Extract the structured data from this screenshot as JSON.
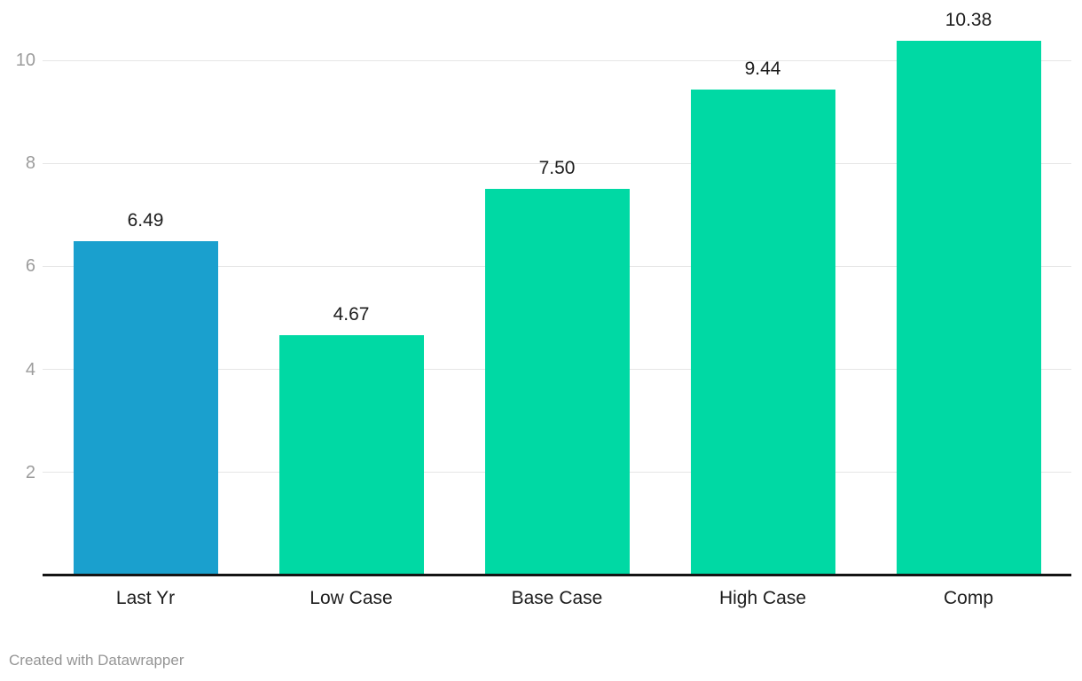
{
  "chart_data": {
    "type": "bar",
    "categories": [
      "Last Yr",
      "Low Case",
      "Base Case",
      "High Case",
      "Comp"
    ],
    "values": [
      6.49,
      4.67,
      7.5,
      9.44,
      10.38
    ],
    "value_labels": [
      "6.49",
      "4.67",
      "7.50",
      "9.44",
      "10.38"
    ],
    "bar_colors": [
      "#1aa0ce",
      "#00d9a4",
      "#00d9a4",
      "#00d9a4",
      "#00d9a4"
    ],
    "y_ticks": [
      "2",
      "4",
      "6",
      "8",
      "10"
    ],
    "y_tick_values": [
      2,
      4,
      6,
      8,
      10
    ],
    "ylim": [
      0,
      10.38
    ],
    "grid": true,
    "legend": "none",
    "xlabel": "",
    "ylabel": ""
  },
  "footer": {
    "credit": "Created with Datawrapper"
  },
  "colors": {
    "highlight_bar": "#1aa0ce",
    "default_bar": "#00d9a4",
    "gridline": "#e6e6e6",
    "axis_line": "#141414",
    "tick_label": "#9c9c9c",
    "category_label": "#1d1d1d",
    "value_label": "#1d1d1d",
    "credit": "#959595",
    "background": "#ffffff"
  }
}
